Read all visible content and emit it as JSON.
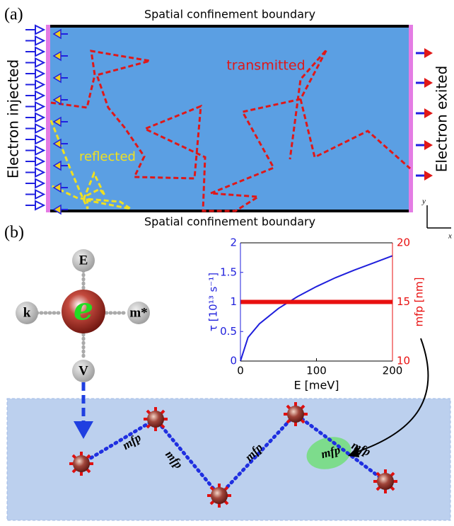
{
  "panel_a": {
    "label": "(a)",
    "top_boundary": "Spatial confinement boundary",
    "bottom_boundary": "Spatial confinement boundary",
    "left_label": "Electron injected",
    "right_label": "Electron exited",
    "transmitted": "transmitted",
    "reflected": "reflected",
    "axis_y": "y",
    "axis_x": "x"
  },
  "panel_b": {
    "label": "(b)",
    "center": "e",
    "nodes": [
      "E",
      "k",
      "m*",
      "V"
    ],
    "mfp_labels": [
      "mfp",
      "mfp",
      "mfp",
      "mfp",
      "mfp"
    ]
  },
  "chart_data": {
    "type": "line",
    "xlabel": "E [meV]",
    "ylabel": "τ [10¹³ s⁻¹]",
    "y2label": "mfp [nm]",
    "x": [
      0,
      10,
      25,
      50,
      75,
      100,
      125,
      150,
      175,
      200
    ],
    "xlim": [
      0,
      200
    ],
    "xticks": [
      0,
      100,
      200
    ],
    "ylim": [
      0,
      2
    ],
    "yticks": [
      0,
      0.5,
      1,
      1.5,
      2
    ],
    "y2lim": [
      10,
      20
    ],
    "y2ticks": [
      10,
      15,
      20
    ],
    "series": [
      {
        "color": "#1f1fdc",
        "values": [
          0,
          0.4,
          0.63,
          0.89,
          1.09,
          1.26,
          1.41,
          1.54,
          1.66,
          1.78
        ]
      },
      {
        "color": "#e81010",
        "axis": "y2",
        "values": [
          15,
          15,
          15,
          15,
          15,
          15,
          15,
          15,
          15,
          15
        ]
      }
    ]
  }
}
